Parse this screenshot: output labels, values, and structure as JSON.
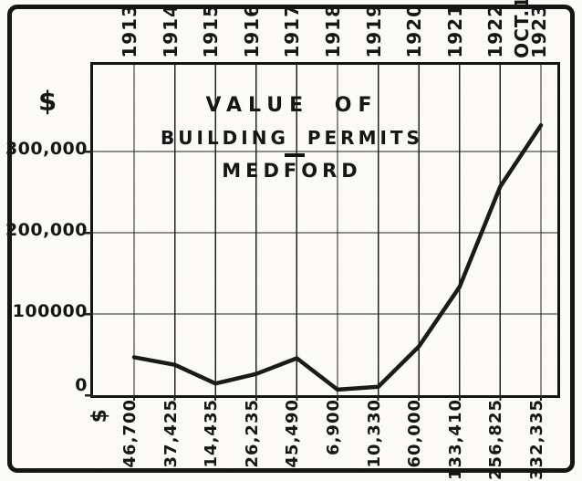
{
  "figure": {
    "title_lines": [
      "VALUE OF",
      "BUILDING PERMITS",
      "MEDFORD"
    ],
    "currency_symbol": "$"
  },
  "chart_data": {
    "type": "line",
    "title": "VALUE OF BUILDING PERMITS - MEDFORD",
    "categories": [
      "1913",
      "1914",
      "1915",
      "1916",
      "1917",
      "1918",
      "1919",
      "1920",
      "1921",
      "1922",
      "OCT.1 1923"
    ],
    "categories_display": [
      "1913",
      "1914",
      "1915",
      "1916",
      "1917",
      "1918",
      "1919",
      "1920",
      "1921",
      "1922",
      "OCT.1\n1923"
    ],
    "values": [
      46700,
      37425,
      14435,
      26235,
      45490,
      6900,
      10330,
      60000,
      133410,
      256825,
      332335
    ],
    "value_labels": [
      "46,700",
      "37,425",
      "14,435",
      "26,235",
      "45,490",
      "6,900",
      "10,330",
      "60,000",
      "133,410",
      "256,825",
      "332,335"
    ],
    "xlabel": "",
    "ylabel": "$",
    "ylim": [
      0,
      400000
    ],
    "y_ticks": [
      {
        "label": "300,000",
        "value": 300000
      },
      {
        "label": "200,000",
        "value": 200000
      },
      {
        "label": "100000",
        "value": 100000
      },
      {
        "label": "0",
        "value": 0
      }
    ],
    "grid": true,
    "legend": "none",
    "line_color": "#1a1a1a",
    "ink_color": "#141414"
  }
}
